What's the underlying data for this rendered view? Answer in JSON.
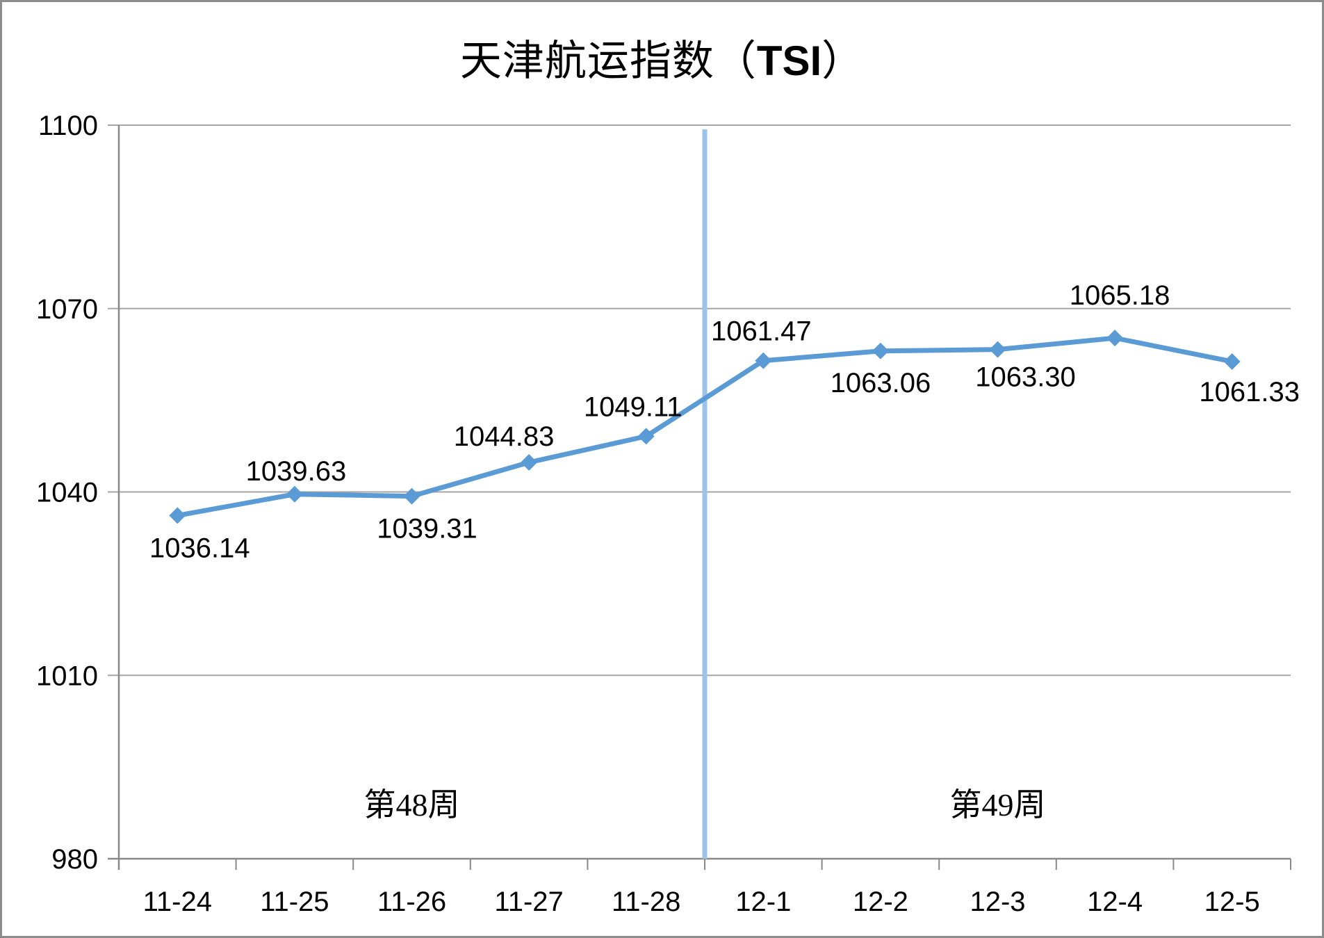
{
  "chart_data": {
    "type": "line",
    "title": "天津航运指数（TSI）",
    "title_parts": {
      "prefix": "天津航运指数（",
      "tsi": "TSI",
      "suffix": "）"
    },
    "categories": [
      "11-24",
      "11-25",
      "11-26",
      "11-27",
      "11-28",
      "12-1",
      "12-2",
      "12-3",
      "12-4",
      "12-5"
    ],
    "series": [
      {
        "name": "TSI",
        "values": [
          1036.14,
          1039.63,
          1039.31,
          1044.83,
          1049.11,
          1061.47,
          1063.06,
          1063.3,
          1065.18,
          1061.33
        ],
        "data_labels": [
          "1036.14",
          "1039.63",
          "1039.31",
          "1044.83",
          "1049.11",
          "1061.47",
          "1063.06",
          "1063.30",
          "1065.18",
          "1061.33"
        ],
        "label_positions": [
          "below",
          "above",
          "below",
          "above",
          "above",
          "above",
          "below",
          "below",
          "above",
          "below"
        ]
      }
    ],
    "ylim": [
      980,
      1100
    ],
    "y_ticks": [
      {
        "value": 1100,
        "label": "1100"
      },
      {
        "value": 1070,
        "label": "1070"
      },
      {
        "value": 1040,
        "label": "1040"
      },
      {
        "value": 1010,
        "label": "1010"
      },
      {
        "value": 980,
        "label": "980"
      }
    ],
    "grid": true,
    "legend": "none",
    "marker": "diamond",
    "divider": {
      "after_category": "11-28",
      "color": "#9DC3E6"
    },
    "annotations": [
      {
        "text": "第48周",
        "span": [
          "11-24",
          "11-28"
        ]
      },
      {
        "text": "第49周",
        "span": [
          "12-1",
          "12-5"
        ]
      }
    ],
    "colors": {
      "line": "#5B9BD5",
      "marker": "#5B9BD5",
      "gridline": "#A6A6A6",
      "axis": "#898989",
      "frame_border": "#8C8C8C",
      "text": "#000000"
    }
  }
}
